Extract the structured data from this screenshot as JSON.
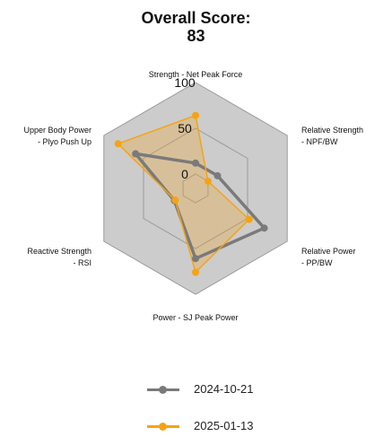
{
  "title_line1": "Overall Score:",
  "title_line2": "83",
  "chart_data": {
    "type": "radar",
    "axes": [
      [
        "Strength - Net Peak Force"
      ],
      [
        "Relative Strength",
        "- NPF/BW"
      ],
      [
        "Relative Power",
        "- PP/BW"
      ],
      [
        "Power - SJ Peak Power"
      ],
      [
        "Reactive Strength",
        "- RSI"
      ],
      [
        "Upper Body Power",
        "- Plyo Push Up"
      ]
    ],
    "ticks": [
      "0",
      "50",
      "100"
    ],
    "rlim": [
      0,
      100
    ],
    "series": [
      {
        "name": "2024-10-21",
        "color": "#7a7a7a",
        "values": [
          12,
          12,
          71,
          61,
          11,
          60
        ]
      },
      {
        "name": "2025-01-13",
        "color": "#f5a315",
        "values": [
          64,
          0,
          52,
          76,
          10,
          82
        ]
      }
    ],
    "background": "#cccccc",
    "grid": true
  }
}
